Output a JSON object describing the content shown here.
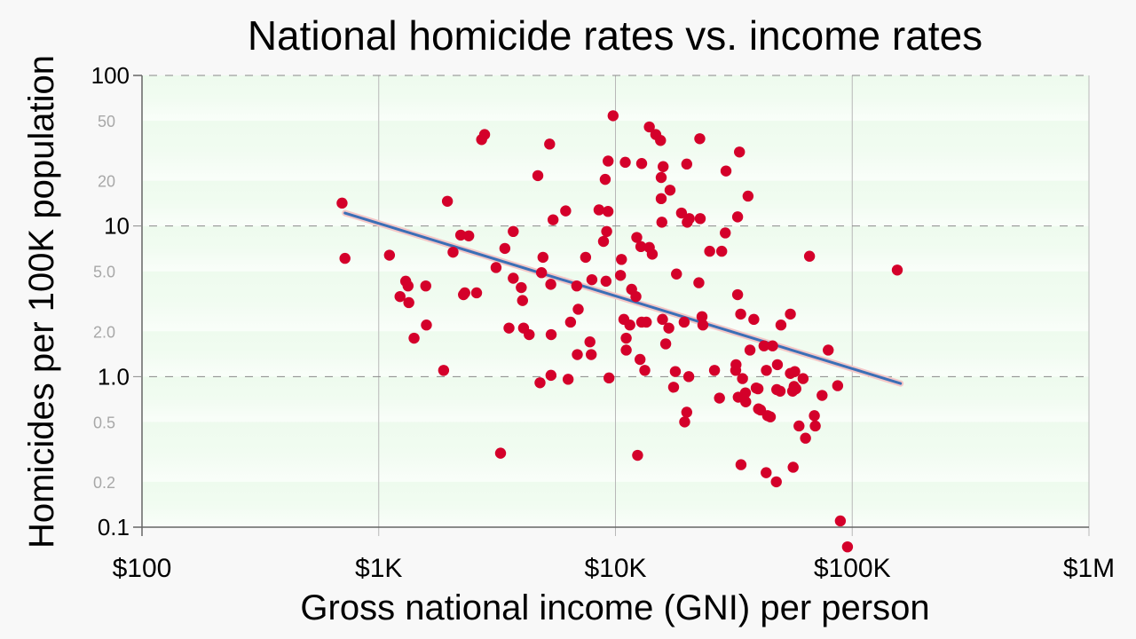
{
  "chart_data": {
    "type": "scatter",
    "title": "National homicide rates vs. income rates",
    "xlabel": "Gross national income (GNI) per person",
    "ylabel": "Homicides per 100K population",
    "x_scale": "log",
    "y_scale": "log",
    "xlim": [
      100,
      1000000
    ],
    "ylim": [
      0.1,
      100
    ],
    "x_ticks": [
      {
        "value": 100,
        "label": "$100"
      },
      {
        "value": 1000,
        "label": "$1K"
      },
      {
        "value": 10000,
        "label": "$10K"
      },
      {
        "value": 100000,
        "label": "$100K"
      },
      {
        "value": 1000000,
        "label": "$1M"
      }
    ],
    "y_ticks_major": [
      {
        "value": 100,
        "label": "100"
      },
      {
        "value": 10,
        "label": "10"
      },
      {
        "value": 1,
        "label": "1.0"
      },
      {
        "value": 0.1,
        "label": "0.1"
      }
    ],
    "y_ticks_minor": [
      {
        "value": 50,
        "label": "50"
      },
      {
        "value": 20,
        "label": "20"
      },
      {
        "value": 5,
        "label": "5.0"
      },
      {
        "value": 2,
        "label": "2.0"
      },
      {
        "value": 0.5,
        "label": "0.5"
      },
      {
        "value": 0.2,
        "label": "0.2"
      }
    ],
    "grid": true,
    "legend": "none",
    "colors": {
      "point": "#d4002a",
      "trend": "#3b6fb6",
      "trend_halo": "#f4c7c7",
      "plot_band_a": "#ffffff",
      "plot_band_b": "#ecfaec",
      "plot_bg": "#f1fcf1"
    },
    "trendline": {
      "x": [
        720,
        160000
      ],
      "y": [
        12.2,
        0.9
      ]
    },
    "points": [
      [
        700,
        14.2
      ],
      [
        720,
        6.1
      ],
      [
        1110,
        6.4
      ],
      [
        1230,
        3.4
      ],
      [
        1300,
        4.3
      ],
      [
        1330,
        4.0
      ],
      [
        1340,
        3.1
      ],
      [
        1410,
        1.8
      ],
      [
        1580,
        4.0
      ],
      [
        1590,
        2.2
      ],
      [
        1880,
        1.1
      ],
      [
        1950,
        14.6
      ],
      [
        2060,
        6.7
      ],
      [
        2220,
        8.7
      ],
      [
        2280,
        3.5
      ],
      [
        2310,
        3.6
      ],
      [
        2400,
        8.6
      ],
      [
        2590,
        3.6
      ],
      [
        2720,
        37.5
      ],
      [
        2800,
        40.5
      ],
      [
        3130,
        5.3
      ],
      [
        3270,
        0.31
      ],
      [
        3410,
        7.1
      ],
      [
        3550,
        2.1
      ],
      [
        3700,
        9.2
      ],
      [
        3700,
        4.5
      ],
      [
        4000,
        3.9
      ],
      [
        4050,
        3.2
      ],
      [
        4090,
        2.1
      ],
      [
        4320,
        1.9
      ],
      [
        4700,
        21.6
      ],
      [
        4800,
        0.91
      ],
      [
        4870,
        4.9
      ],
      [
        4940,
        6.2
      ],
      [
        5270,
        35.0
      ],
      [
        5330,
        4.1
      ],
      [
        5340,
        1.02
      ],
      [
        5350,
        1.9
      ],
      [
        5450,
        11.0
      ],
      [
        6160,
        12.6
      ],
      [
        6310,
        0.96
      ],
      [
        6460,
        2.3
      ],
      [
        6860,
        4.0
      ],
      [
        6900,
        1.4
      ],
      [
        6960,
        2.8
      ],
      [
        7480,
        6.2
      ],
      [
        7800,
        1.7
      ],
      [
        7900,
        1.4
      ],
      [
        7950,
        4.4
      ],
      [
        8520,
        12.8
      ],
      [
        8900,
        7.9
      ],
      [
        9050,
        20.4
      ],
      [
        9120,
        4.3
      ],
      [
        9180,
        9.2
      ],
      [
        9300,
        12.5
      ],
      [
        9310,
        27.0
      ],
      [
        9390,
        0.98
      ],
      [
        9770,
        54.0
      ],
      [
        10500,
        4.7
      ],
      [
        10600,
        6.0
      ],
      [
        10850,
        2.4
      ],
      [
        11000,
        26.5
      ],
      [
        11100,
        1.5
      ],
      [
        11100,
        1.8
      ],
      [
        11500,
        2.2
      ],
      [
        11700,
        3.8
      ],
      [
        12200,
        3.4
      ],
      [
        12300,
        8.4
      ],
      [
        12400,
        0.3
      ],
      [
        12700,
        1.3
      ],
      [
        12800,
        7.3
      ],
      [
        12900,
        26.0
      ],
      [
        12900,
        2.3
      ],
      [
        13300,
        1.1
      ],
      [
        13500,
        2.3
      ],
      [
        13900,
        45.5
      ],
      [
        13900,
        7.2
      ],
      [
        14300,
        6.5
      ],
      [
        14800,
        40.5
      ],
      [
        15500,
        37.0
      ],
      [
        15600,
        21.0
      ],
      [
        15600,
        15.2
      ],
      [
        15700,
        10.6
      ],
      [
        15800,
        2.4
      ],
      [
        15900,
        24.8
      ],
      [
        16300,
        1.65
      ],
      [
        16800,
        2.1
      ],
      [
        17000,
        17.3
      ],
      [
        17600,
        0.85
      ],
      [
        17900,
        1.08
      ],
      [
        18100,
        4.8
      ],
      [
        19000,
        12.2
      ],
      [
        19500,
        2.3
      ],
      [
        19600,
        0.5
      ],
      [
        20000,
        0.58
      ],
      [
        20000,
        25.8
      ],
      [
        20100,
        10.6
      ],
      [
        20400,
        1.0
      ],
      [
        20500,
        11.2
      ],
      [
        22500,
        4.2
      ],
      [
        22700,
        38.0
      ],
      [
        22800,
        11.2
      ],
      [
        23200,
        2.5
      ],
      [
        23400,
        2.2
      ],
      [
        25000,
        6.8
      ],
      [
        26200,
        1.1
      ],
      [
        27500,
        0.72
      ],
      [
        28100,
        6.8
      ],
      [
        29100,
        9.0
      ],
      [
        29300,
        23.2
      ],
      [
        32200,
        1.1
      ],
      [
        32300,
        1.2
      ],
      [
        32800,
        11.5
      ],
      [
        32800,
        3.5
      ],
      [
        33000,
        0.73
      ],
      [
        33400,
        31.0
      ],
      [
        33800,
        2.6
      ],
      [
        33900,
        0.26
      ],
      [
        34400,
        0.97
      ],
      [
        35400,
        0.78
      ],
      [
        35500,
        0.68
      ],
      [
        36300,
        15.8
      ],
      [
        37000,
        1.5
      ],
      [
        38400,
        2.4
      ],
      [
        39300,
        0.84
      ],
      [
        40000,
        0.83
      ],
      [
        40200,
        0.61
      ],
      [
        41000,
        0.6
      ],
      [
        42400,
        1.6
      ],
      [
        43300,
        0.23
      ],
      [
        43400,
        1.1
      ],
      [
        43900,
        0.55
      ],
      [
        45100,
        0.54
      ],
      [
        46100,
        1.6
      ],
      [
        47800,
        0.2
      ],
      [
        48000,
        0.82
      ],
      [
        48300,
        1.2
      ],
      [
        49600,
        0.8
      ],
      [
        50000,
        2.2
      ],
      [
        54800,
        2.6
      ],
      [
        54800,
        1.05
      ],
      [
        56000,
        0.8
      ],
      [
        56300,
        0.25
      ],
      [
        56800,
        0.86
      ],
      [
        57200,
        1.08
      ],
      [
        57800,
        0.83
      ],
      [
        59600,
        0.47
      ],
      [
        62000,
        0.97
      ],
      [
        63500,
        0.39
      ],
      [
        66000,
        6.3
      ],
      [
        69200,
        0.55
      ],
      [
        69800,
        0.47
      ],
      [
        74600,
        0.75
      ],
      [
        79200,
        1.5
      ],
      [
        86800,
        0.87
      ],
      [
        89100,
        0.11
      ],
      [
        95500,
        0.074
      ],
      [
        155000,
        5.1
      ]
    ]
  }
}
